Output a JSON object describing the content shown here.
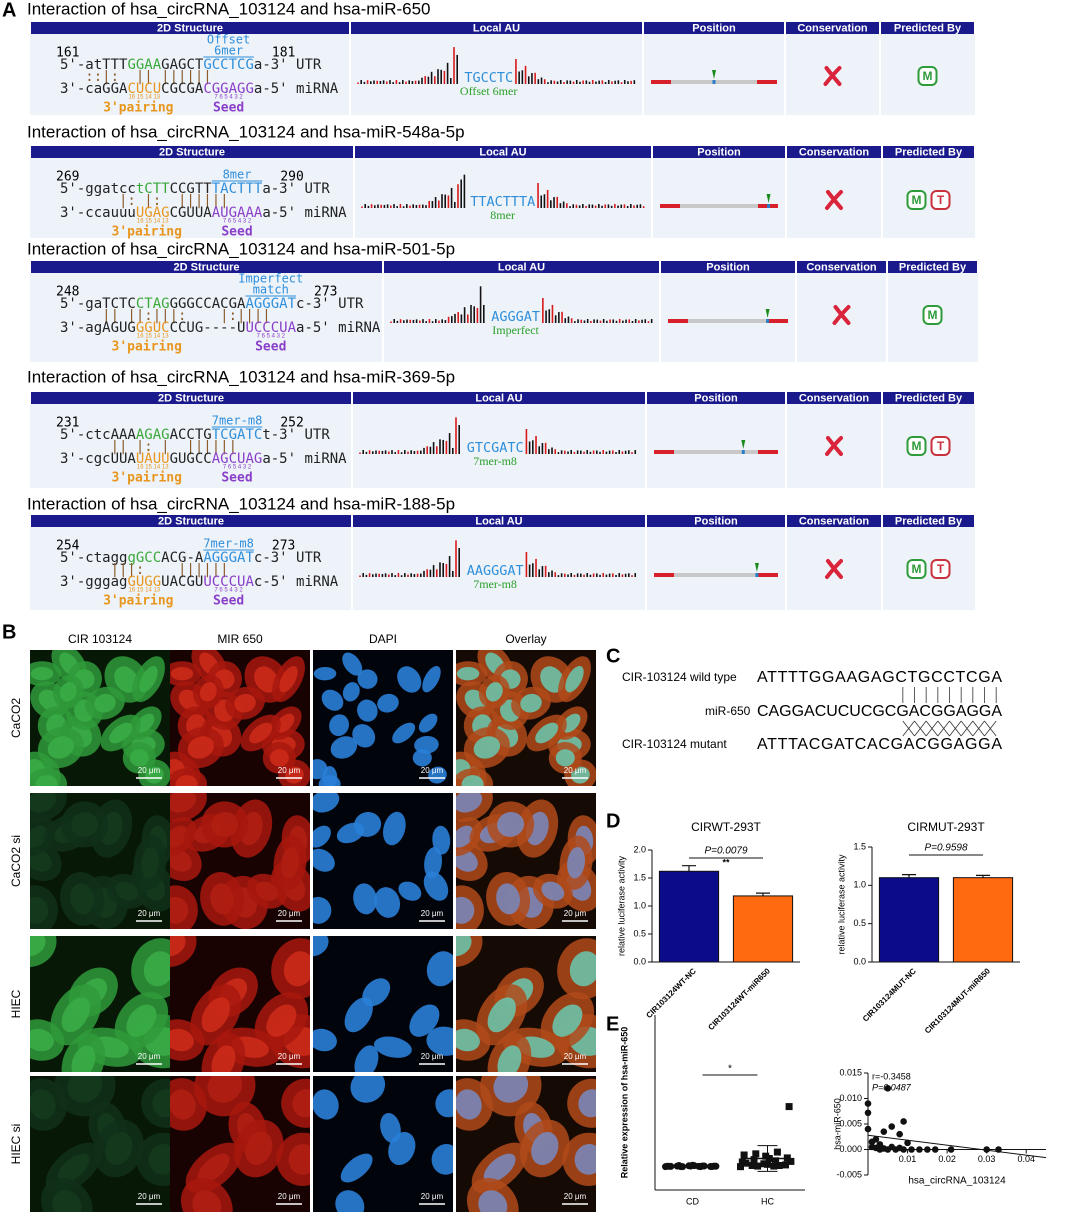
{
  "panel_a": {
    "letter": "A",
    "headers": [
      "2D Structure",
      "Local AU",
      "Position",
      "Conservation",
      "Predicted By"
    ],
    "pairing_label": "3'pairing",
    "seed_label": "Seed",
    "pairing_positions": "16 15 14 13",
    "seed_positions": "7 6 5 4 3 2",
    "badge_colors": {
      "M": "#2e9b3a",
      "T": "#c8323c"
    },
    "interactions": [
      {
        "title": "Interaction of hsa_circRNA_103124 and hsa-miR-650",
        "start": 161,
        "end": 181,
        "site_type": [
          "Offset",
          "6mer"
        ],
        "utr": [
          "5'-atTTT",
          "GGAA",
          "GAGCT",
          "GCCTCG",
          "a-3' UTR"
        ],
        "pairs": "   ::|:  || ||||||",
        "mirna": [
          "3'-caGGA",
          "CUCU",
          "CGCGA",
          "CGGAGG",
          "a-5' miRNA"
        ],
        "au_seq": "TGCCTC",
        "au_type": "Offset 6mer",
        "position": 0.5,
        "predicted_by": [
          "M"
        ]
      },
      {
        "title": "Interaction of hsa_circRNA_103124 and hsa-miR-548a-5p",
        "start": 269,
        "end": 290,
        "site_type": [
          "8mer"
        ],
        "utr": [
          "5'-ggatcc",
          "tCTT",
          "CCGTT",
          "TACTTT",
          "a-3' UTR"
        ],
        "pairs": "       |: |:  ||||||",
        "mirna": [
          "3'-ccauuu",
          "UGAG",
          "CGUUA",
          "AUGAAA",
          "a-5' miRNA"
        ],
        "au_seq": "TTACTTTA",
        "au_type": "8mer",
        "position": 0.92,
        "predicted_by": [
          "M",
          "T"
        ]
      },
      {
        "title": "Interaction of hsa_circRNA_103124 and hsa-miR-501-5p",
        "start": 248,
        "end": 273,
        "site_type": [
          "Imperfect",
          "match"
        ],
        "utr": [
          "5'-gaTCTC",
          "CTAG",
          "GGGCCACGA",
          "AGGGAT",
          "c-3' UTR"
        ],
        "pairs": "     || ||:|||:    |:||||",
        "mirna": [
          "3'-agAGUG",
          "GGUC",
          "CCUG----U",
          "UCCCUA",
          "a-5' miRNA"
        ],
        "au_seq": "AGGGAT",
        "au_type": "Imperfect",
        "position": 0.83,
        "predicted_by": [
          "M"
        ]
      },
      {
        "title": "Interaction of hsa_circRNA_103124 and hsa-miR-369-5p",
        "start": 231,
        "end": 252,
        "site_type": [
          "7mer-m8"
        ],
        "utr": [
          "5'-ctcAAA",
          "AGAG",
          "ACCTG",
          "TCGATC",
          "t-3' UTR"
        ],
        "pairs": "      || |: |  ||||||",
        "mirna": [
          "3'-cgcUUA",
          "UAUU",
          "GUGCC",
          "AGCUAG",
          "a-5' miRNA"
        ],
        "au_seq": "GTCGATC",
        "au_type": "7mer-m8",
        "position": 0.72,
        "predicted_by": [
          "M",
          "T"
        ]
      },
      {
        "title": "Interaction of hsa_circRNA_103124 and hsa-miR-188-5p",
        "start": 254,
        "end": 273,
        "site_type": [
          "7mer-m8"
        ],
        "utr": [
          "5'-ctagg",
          "gGCC",
          "ACG-A",
          "AGGGAT",
          "c-3' UTR"
        ],
        "pairs": "      |||:    ||||||",
        "mirna": [
          "3'-gggag",
          "GUGG",
          "UACGU",
          "UCCCUA",
          "c-5' miRNA"
        ],
        "au_seq": "AAGGGAT",
        "au_type": "7mer-m8",
        "position": 0.83,
        "predicted_by": [
          "M",
          "T"
        ]
      }
    ]
  },
  "panel_b": {
    "letter": "B",
    "columns": [
      "CIR 103124",
      "MIR 650",
      "DAPI",
      "Overlay"
    ],
    "rows": [
      "CaCO2",
      "CaCO2 si",
      "HIEC",
      "HIEC si"
    ],
    "scale_bar": "20 μm"
  },
  "panel_c": {
    "letter": "C",
    "rows": [
      {
        "label": "CIR-103124 wild type",
        "sequence": "ATTTTGGAAGAGCTGCCTCGA"
      },
      {
        "label": "miR-650",
        "sequence": "CAGGACUCUCGCGACGGAGGA"
      },
      {
        "label": "CIR-103124 mutant",
        "sequence": "ATTTACGATCACGACGGAGGA"
      }
    ]
  },
  "panel_d": {
    "letter": "D"
  },
  "panel_e": {
    "letter": "E"
  },
  "chart_data": [
    {
      "type": "bar",
      "title": "CIRWT-293T",
      "y_label": "relative luciferase activity",
      "categories": [
        "CIR103124WT-NC",
        "CIR103124WT-miR650"
      ],
      "values": [
        1.62,
        1.18
      ],
      "errors": [
        0.1,
        0.05
      ],
      "colors": [
        "#0c0c8a",
        "#ff6a10"
      ],
      "ylim": [
        0,
        2
      ],
      "yticks": [
        {
          "value": 0,
          "label": "0.0"
        },
        0.5,
        {
          "value": 1,
          "label": "1.0"
        },
        1.5,
        {
          "value": 2,
          "label": "2.0"
        }
      ],
      "annotations": [
        "P=0.0079",
        "**"
      ]
    },
    {
      "type": "bar",
      "title": "CIRMUT-293T",
      "y_label": "relative luciferase activity",
      "categories": [
        "CIR103124MUT-NC",
        "CIR103124MUT-miR650"
      ],
      "values": [
        1.1,
        1.1
      ],
      "errors": [
        0.04,
        0.03
      ],
      "colors": [
        "#0c0c8a",
        "#ff6a10"
      ],
      "ylim": [
        0,
        1.5
      ],
      "yticks": [
        {
          "value": 0,
          "label": "0.0"
        },
        0.5,
        {
          "value": 1,
          "label": "1.0"
        },
        1.5
      ],
      "annotations": [
        "P=0.9598"
      ]
    },
    {
      "type": "strip",
      "y_label": "Relative expression of hsa-miR-650",
      "categories": [
        "CD",
        "HC"
      ],
      "groups": [
        [
          0,
          0.5,
          1,
          0.2,
          1.5,
          0.8,
          0,
          2,
          0.3,
          1,
          0.6,
          1.2,
          0.1,
          0.9,
          2.5,
          0.4,
          1.1,
          0,
          0.7,
          1.8
        ],
        [
          0,
          1,
          2,
          3,
          5,
          8,
          10,
          12,
          15,
          18,
          20,
          25,
          22,
          103,
          4,
          6,
          2,
          1,
          9,
          14
        ]
      ],
      "markers": [
        "circle",
        "square"
      ],
      "means": [
        0.8,
        14
      ],
      "sd": [
        0.7,
        22
      ],
      "ylim": [
        -40,
        260
      ],
      "annotations": [
        "*"
      ]
    },
    {
      "type": "scatter",
      "x_label": "hsa_circRNA_103124",
      "y_label": "hsa-miR-650",
      "x": [
        0,
        0,
        0,
        0.001,
        0.001,
        0.002,
        0.002,
        0.003,
        0.003,
        0.004,
        0.004,
        0.005,
        0.005,
        0.006,
        0.006,
        0.007,
        0.008,
        0.008,
        0.009,
        0.009,
        0.01,
        0.011,
        0.013,
        0.015,
        0.017,
        0.021,
        0.03,
        0.033
      ],
      "y": [
        0.009,
        0.0072,
        0.004,
        0.0015,
        0.0005,
        0.0003,
        0.002,
        0.001,
        0,
        0.0002,
        0.0035,
        0.012,
        0,
        0.0005,
        0.0045,
        0,
        0.0003,
        0.003,
        0,
        0.0055,
        0.0013,
        0,
        0,
        0,
        0,
        0,
        0,
        0
      ],
      "xlim": [
        0,
        0.045
      ],
      "ylim": [
        -0.005,
        0.015
      ],
      "xticks": [
        0.01,
        0.02,
        0.03,
        0.04
      ],
      "yticks": [
        -0.005,
        {
          "value": 0,
          "label": "0.000"
        },
        0.005,
        {
          "value": 0.01,
          "label": "0.010"
        },
        0.015
      ],
      "trend_line": {
        "x": [
          0,
          0.045
        ],
        "y": [
          0.0028,
          -0.0016
        ]
      },
      "annotations": [
        "r=-0.3458",
        "P=0.0487"
      ]
    }
  ]
}
